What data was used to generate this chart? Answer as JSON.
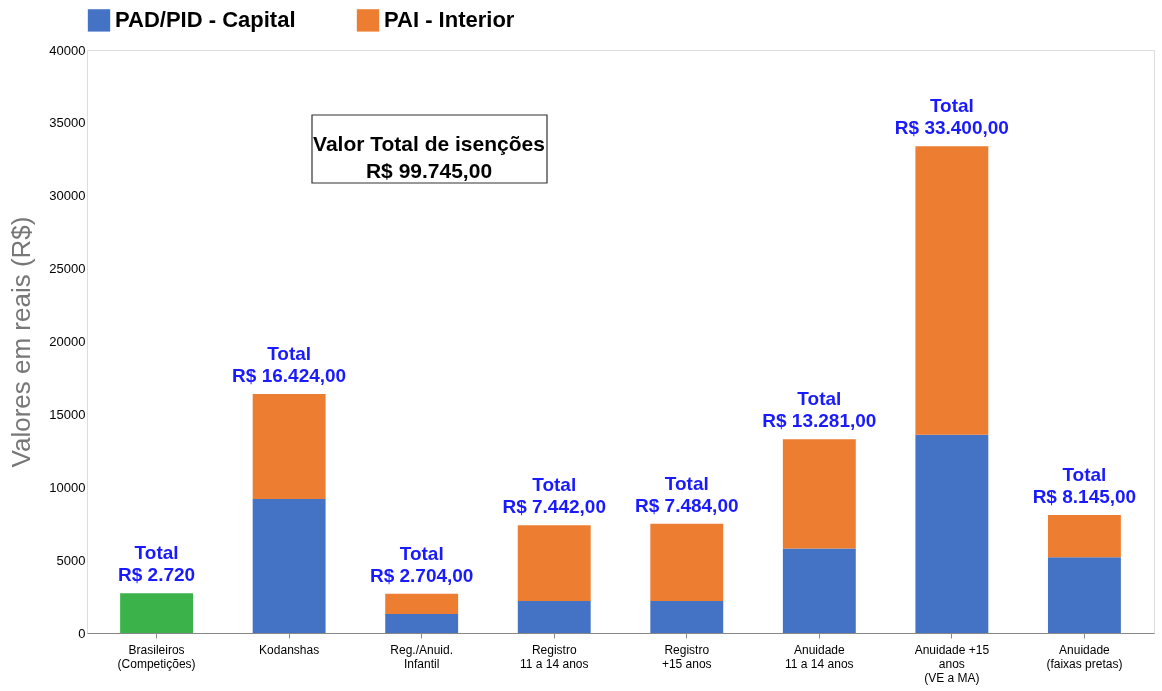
{
  "chart_data": {
    "type": "bar",
    "stacked": true,
    "categories": [
      "Brasileiros\n(Competições)",
      "Kodanshas",
      "Reg./Anuid.\nInfantil",
      "Registro\n11 a 14 anos",
      "Registro\n+15 anos",
      "Anuidade\n11 a 14 anos",
      "Anuidade +15\nanos\n(VE a MA)",
      "Anuidade\n(faixas pretas)"
    ],
    "series": [
      {
        "color": "#3bb34a",
        "values": [
          2720,
          null,
          null,
          null,
          null,
          null,
          null,
          null
        ]
      },
      {
        "name": "PAD/PID - Capital",
        "color": "#4472c4",
        "values": [
          null,
          9200,
          1300,
          2200,
          2200,
          5800,
          13600,
          5200
        ]
      },
      {
        "name": "PAI - Interior",
        "color": "#ed7d31",
        "values": [
          null,
          7200,
          1400,
          5200,
          5300,
          7500,
          19800,
          2900
        ]
      }
    ],
    "totals": [
      "Total\nR$ 2.720",
      "Total\nR$ 16.424,00",
      "Total\nR$ 2.704,00",
      "Total\nR$ 7.442,00",
      "Total\nR$ 7.484,00",
      "Total\nR$ 13.281,00",
      "Total\nR$ 33.400,00",
      "Total\nR$ 8.145,00"
    ],
    "annotations": [
      "Valor Total de isenções\nR$ 99.745,00"
    ],
    "ylabel": "Valores em reais (R$)",
    "ylim": [
      0,
      40000
    ],
    "yticks": [
      0,
      5000,
      10000,
      15000,
      20000,
      25000,
      30000,
      35000,
      40000
    ],
    "grid": false,
    "legend": "top"
  }
}
